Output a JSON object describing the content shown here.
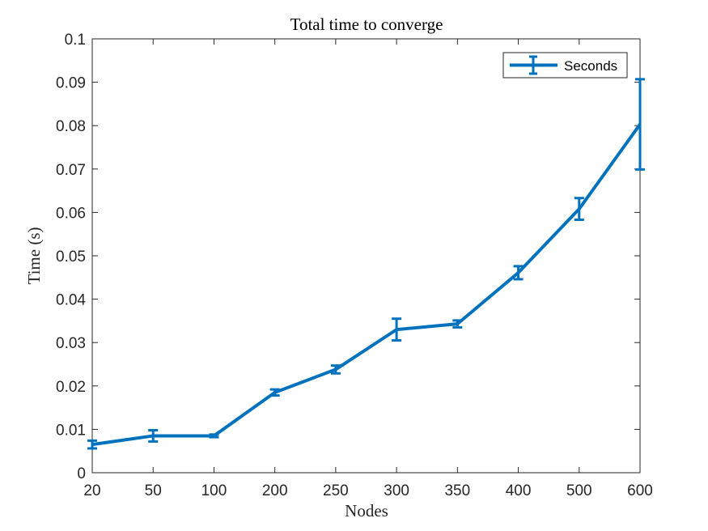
{
  "chart_data": {
    "type": "line",
    "title": "Total time to converge",
    "xlabel": "Nodes",
    "ylabel": "Time (s)",
    "categories": [
      "20",
      "50",
      "100",
      "200",
      "250",
      "300",
      "350",
      "400",
      "500",
      "600"
    ],
    "series": [
      {
        "name": "Seconds",
        "values": [
          0.0065,
          0.0085,
          0.0085,
          0.0185,
          0.0238,
          0.033,
          0.0343,
          0.0461,
          0.0608,
          0.0803
        ],
        "error": [
          0.0009,
          0.0013,
          0.0003,
          0.0007,
          0.0009,
          0.0025,
          0.0008,
          0.0015,
          0.0025,
          0.0104
        ],
        "color": "#0072BD"
      }
    ],
    "ylim": [
      0,
      0.1
    ],
    "yticks": [
      "0",
      "0.01",
      "0.02",
      "0.03",
      "0.04",
      "0.05",
      "0.06",
      "0.07",
      "0.08",
      "0.09",
      "0.1"
    ],
    "grid": false,
    "legend_position": "top-right"
  }
}
